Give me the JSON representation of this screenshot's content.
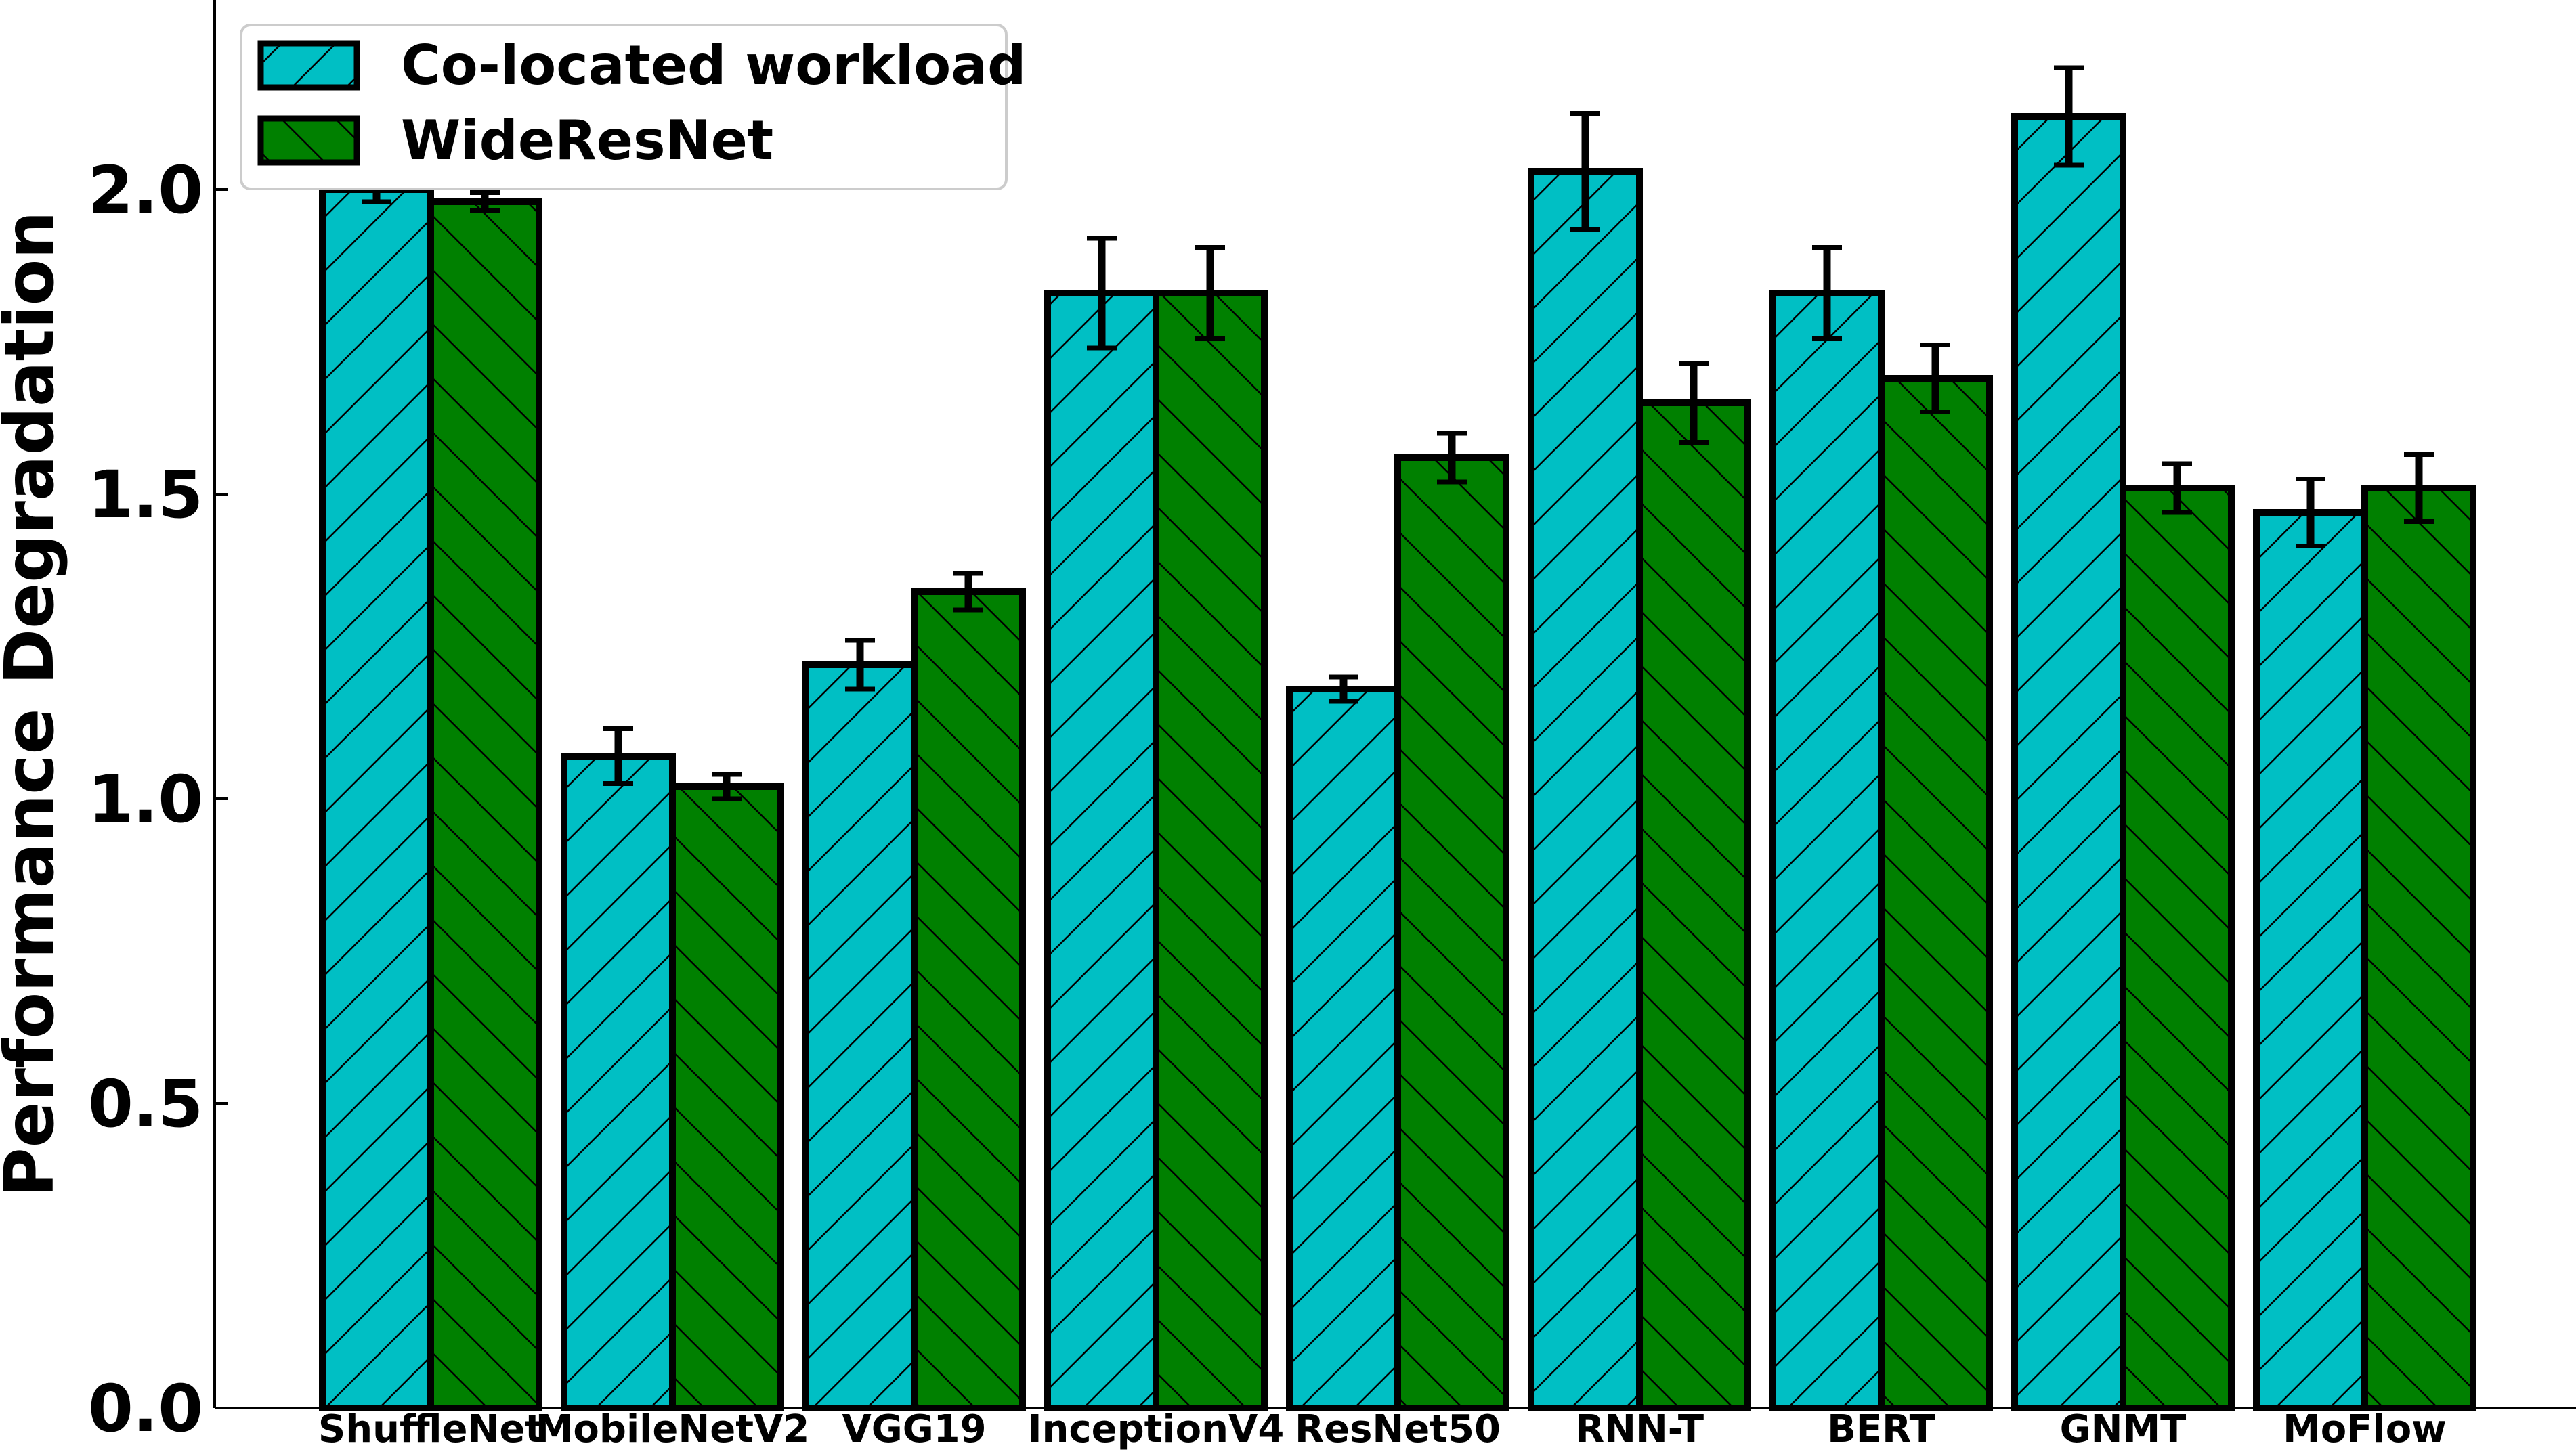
{
  "chart_data": {
    "type": "bar",
    "categories": [
      "ShuffleNet",
      "MobileNetV2",
      "VGG19",
      "InceptionV4",
      "ResNet50",
      "RNN-T",
      "BERT",
      "GNMT",
      "MoFlow"
    ],
    "series": [
      {
        "name": "Co-located workload",
        "color": "#00bfc4",
        "hatch": "forward-diagonal",
        "values": [
          2.0,
          1.07,
          1.22,
          1.83,
          1.18,
          2.03,
          1.83,
          2.12,
          1.47
        ],
        "errors": [
          0.02,
          0.045,
          0.04,
          0.09,
          0.02,
          0.095,
          0.075,
          0.08,
          0.055
        ]
      },
      {
        "name": "WideResNet",
        "color": "#008000",
        "hatch": "back-diagonal",
        "values": [
          1.98,
          1.02,
          1.34,
          1.83,
          1.56,
          1.65,
          1.69,
          1.51,
          1.51
        ],
        "errors": [
          0.015,
          0.02,
          0.03,
          0.075,
          0.04,
          0.065,
          0.055,
          0.04,
          0.055
        ]
      }
    ],
    "ylabel": "Performance Degradation",
    "xlabel": "",
    "ylim": [
      0,
      2.3
    ],
    "yticks": [
      "0.0",
      "0.5",
      "1.0",
      "1.5",
      "2.0"
    ],
    "legend_position": "top-left",
    "grid": false
  }
}
